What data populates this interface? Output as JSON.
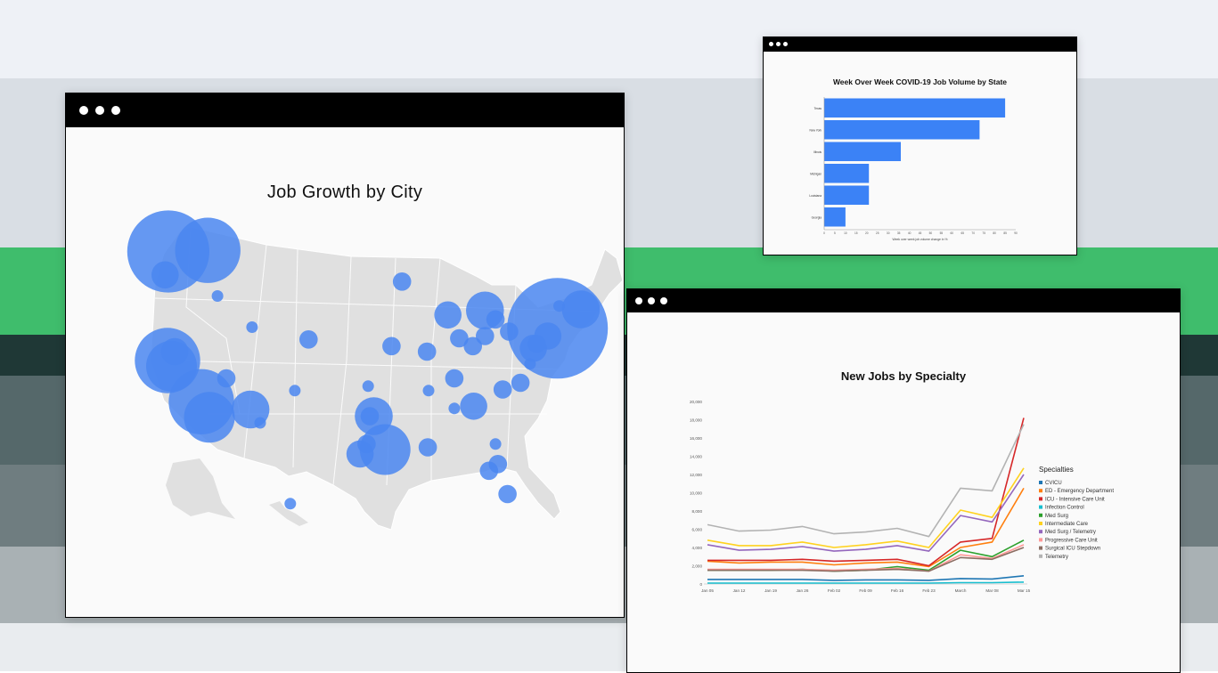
{
  "windows": {
    "map": {
      "title": "Job Growth by City"
    },
    "bar": {
      "title": "Week Over Week COVID-19 Job Volume by State"
    },
    "line": {
      "title": "New Jobs by Specialty"
    }
  },
  "colors": {
    "accent": "#3b82f6",
    "land": "#e2e2e2",
    "window_bar": "#000000"
  },
  "chart_data": [
    {
      "type": "scatter",
      "title": "Job Growth by City",
      "description_kind": "bubble-map",
      "marker_color": "#4a86f0",
      "points": [
        {
          "lon": -122.3,
          "lat": 47.6,
          "size": 9
        },
        {
          "lon": -117.4,
          "lat": 47.7,
          "size": 8
        },
        {
          "lon": -116.2,
          "lat": 43.6,
          "size": 3
        },
        {
          "lon": -122.7,
          "lat": 45.5,
          "size": 5
        },
        {
          "lon": -122.4,
          "lat": 37.8,
          "size": 8
        },
        {
          "lon": -121.9,
          "lat": 37.3,
          "size": 7
        },
        {
          "lon": -121.5,
          "lat": 38.6,
          "size": 5
        },
        {
          "lon": -118.2,
          "lat": 34.1,
          "size": 8
        },
        {
          "lon": -117.2,
          "lat": 32.7,
          "size": 7
        },
        {
          "lon": -115.1,
          "lat": 36.2,
          "size": 4
        },
        {
          "lon": -112.1,
          "lat": 33.4,
          "size": 6
        },
        {
          "lon": -110.9,
          "lat": 32.2,
          "size": 3
        },
        {
          "lon": -111.9,
          "lat": 40.8,
          "size": 3
        },
        {
          "lon": -104.9,
          "lat": 39.7,
          "size": 4
        },
        {
          "lon": -106.6,
          "lat": 35.1,
          "size": 3
        },
        {
          "lon": -97.5,
          "lat": 35.5,
          "size": 3
        },
        {
          "lon": -96.8,
          "lat": 32.8,
          "size": 6
        },
        {
          "lon": -97.3,
          "lat": 32.8,
          "size": 4
        },
        {
          "lon": -95.4,
          "lat": 29.8,
          "size": 7
        },
        {
          "lon": -98.5,
          "lat": 29.4,
          "size": 5
        },
        {
          "lon": -97.7,
          "lat": 30.3,
          "size": 4
        },
        {
          "lon": -94.6,
          "lat": 39.1,
          "size": 4
        },
        {
          "lon": -90.2,
          "lat": 38.6,
          "size": 4
        },
        {
          "lon": -93.3,
          "lat": 44.9,
          "size": 4
        },
        {
          "lon": -87.6,
          "lat": 41.9,
          "size": 5
        },
        {
          "lon": -86.2,
          "lat": 39.8,
          "size": 4
        },
        {
          "lon": -84.5,
          "lat": 39.1,
          "size": 4
        },
        {
          "lon": -83.0,
          "lat": 40.0,
          "size": 4
        },
        {
          "lon": -83.0,
          "lat": 42.3,
          "size": 6
        },
        {
          "lon": -81.7,
          "lat": 41.5,
          "size": 4
        },
        {
          "lon": -80.0,
          "lat": 40.4,
          "size": 4
        },
        {
          "lon": -86.8,
          "lat": 36.2,
          "size": 4
        },
        {
          "lon": -90.0,
          "lat": 35.1,
          "size": 3
        },
        {
          "lon": -84.4,
          "lat": 33.7,
          "size": 5
        },
        {
          "lon": -80.8,
          "lat": 35.2,
          "size": 4
        },
        {
          "lon": -78.6,
          "lat": 35.8,
          "size": 4
        },
        {
          "lon": -77.4,
          "lat": 37.5,
          "size": 3
        },
        {
          "lon": -77.0,
          "lat": 38.9,
          "size": 5
        },
        {
          "lon": -76.6,
          "lat": 39.3,
          "size": 4
        },
        {
          "lon": -75.2,
          "lat": 40.0,
          "size": 5
        },
        {
          "lon": -74.0,
          "lat": 40.7,
          "size": 10
        },
        {
          "lon": -71.1,
          "lat": 42.4,
          "size": 6
        },
        {
          "lon": -73.8,
          "lat": 42.7,
          "size": 3
        },
        {
          "lon": -81.4,
          "lat": 28.5,
          "size": 4
        },
        {
          "lon": -82.5,
          "lat": 27.9,
          "size": 4
        },
        {
          "lon": -80.2,
          "lat": 25.8,
          "size": 4
        },
        {
          "lon": -81.7,
          "lat": 30.3,
          "size": 3
        },
        {
          "lon": -90.1,
          "lat": 30.0,
          "size": 4
        },
        {
          "lon": -86.8,
          "lat": 33.5,
          "size": 3
        },
        {
          "lon": -157.9,
          "lat": 21.3,
          "size": 3
        }
      ]
    },
    {
      "type": "bar",
      "orientation": "horizontal",
      "title": "Week Over Week COVID-19 Job Volume by State",
      "xlabel": "Week over week job volume change in %",
      "categories": [
        "Texas",
        "New York",
        "Illinois",
        "Michigan",
        "Louisiana",
        "Georgia"
      ],
      "values": [
        85,
        73,
        36,
        21,
        21,
        10
      ],
      "xlim": [
        0,
        90
      ],
      "xticks": [
        0,
        5,
        10,
        15,
        20,
        25,
        30,
        35,
        40,
        45,
        50,
        55,
        60,
        65,
        70,
        75,
        80,
        85,
        90
      ],
      "bar_color": "#3b82f6"
    },
    {
      "type": "line",
      "title": "New Jobs by Specialty",
      "legend_title": "Specialties",
      "legend_position": "right",
      "grid": false,
      "ylim": [
        0,
        20000
      ],
      "yticks": [
        "0",
        "2,000",
        "4,000",
        "6,000",
        "8,000",
        "10,000",
        "12,000",
        "14,000",
        "16,000",
        "18,000",
        "20,000"
      ],
      "x": [
        "Jan 05",
        "Jan 12",
        "Jan 19",
        "Jan 26",
        "Feb 02",
        "Feb 09",
        "Feb 16",
        "Feb 23",
        "March",
        "Mar 08",
        "Mar 15"
      ],
      "series": [
        {
          "name": "CVICU",
          "color": "#1f77b4",
          "values": [
            500,
            500,
            500,
            500,
            400,
            450,
            450,
            400,
            600,
            550,
            900
          ]
        },
        {
          "name": "ED - Emergency Department",
          "color": "#ff7f0e",
          "values": [
            2500,
            2300,
            2400,
            2400,
            2100,
            2300,
            2400,
            1900,
            4000,
            4600,
            10500
          ]
        },
        {
          "name": "ICU - Intensive Care Unit",
          "color": "#d62728",
          "values": [
            2600,
            2600,
            2600,
            2700,
            2500,
            2600,
            2700,
            2000,
            4600,
            5000,
            18200
          ]
        },
        {
          "name": "Infection Control",
          "color": "#17becf",
          "values": [
            100,
            100,
            100,
            100,
            100,
            100,
            100,
            100,
            150,
            150,
            200
          ]
        },
        {
          "name": "Med Surg",
          "color": "#2ca02c",
          "values": [
            1500,
            1500,
            1500,
            1600,
            1400,
            1500,
            1900,
            1500,
            3700,
            3000,
            4800
          ]
        },
        {
          "name": "Intermediate Care",
          "color": "#ffd21f",
          "values": [
            4800,
            4200,
            4200,
            4600,
            4000,
            4300,
            4700,
            4000,
            8100,
            7300,
            12700
          ]
        },
        {
          "name": "Med Surg / Telemetry",
          "color": "#9467bd",
          "values": [
            4300,
            3700,
            3800,
            4100,
            3600,
            3800,
            4200,
            3600,
            7500,
            6800,
            12000
          ]
        },
        {
          "name": "Progressive Care Unit",
          "color": "#ff9896",
          "values": [
            1600,
            1600,
            1600,
            1600,
            1500,
            1600,
            1700,
            1400,
            3200,
            2800,
            4300
          ]
        },
        {
          "name": "Surgical ICU Stepdown",
          "color": "#8c6d62",
          "values": [
            1500,
            1500,
            1500,
            1500,
            1400,
            1500,
            1600,
            1400,
            2900,
            2700,
            4000
          ]
        },
        {
          "name": "Telemetry",
          "color": "#b3b3b3",
          "values": [
            6500,
            5800,
            5900,
            6300,
            5500,
            5700,
            6100,
            5200,
            10500,
            10200,
            17500
          ]
        }
      ]
    }
  ]
}
